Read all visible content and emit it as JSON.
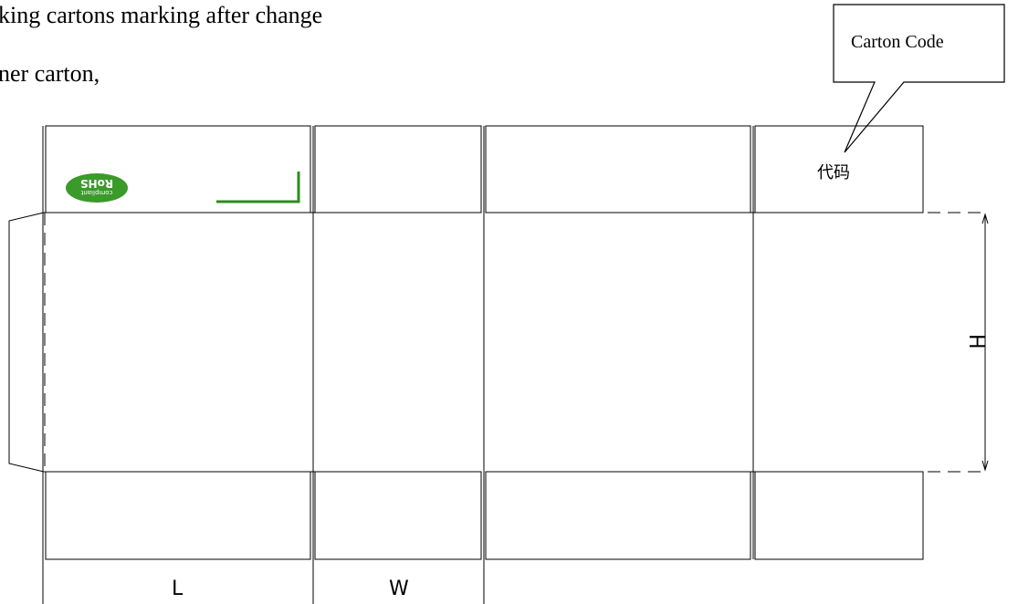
{
  "intro": {
    "line1": "king cartons marking after change",
    "line2": "ner carton,"
  },
  "callout": {
    "label": "Carton Code"
  },
  "code_label": "代码",
  "rohs": {
    "line1": "RoHS",
    "line2": "compliant",
    "color": "#3a9a2a"
  },
  "dimensions": {
    "length": "L",
    "width": "W",
    "height": "H"
  },
  "colors": {
    "line": "#000000",
    "mark": "#2e8b1e"
  }
}
